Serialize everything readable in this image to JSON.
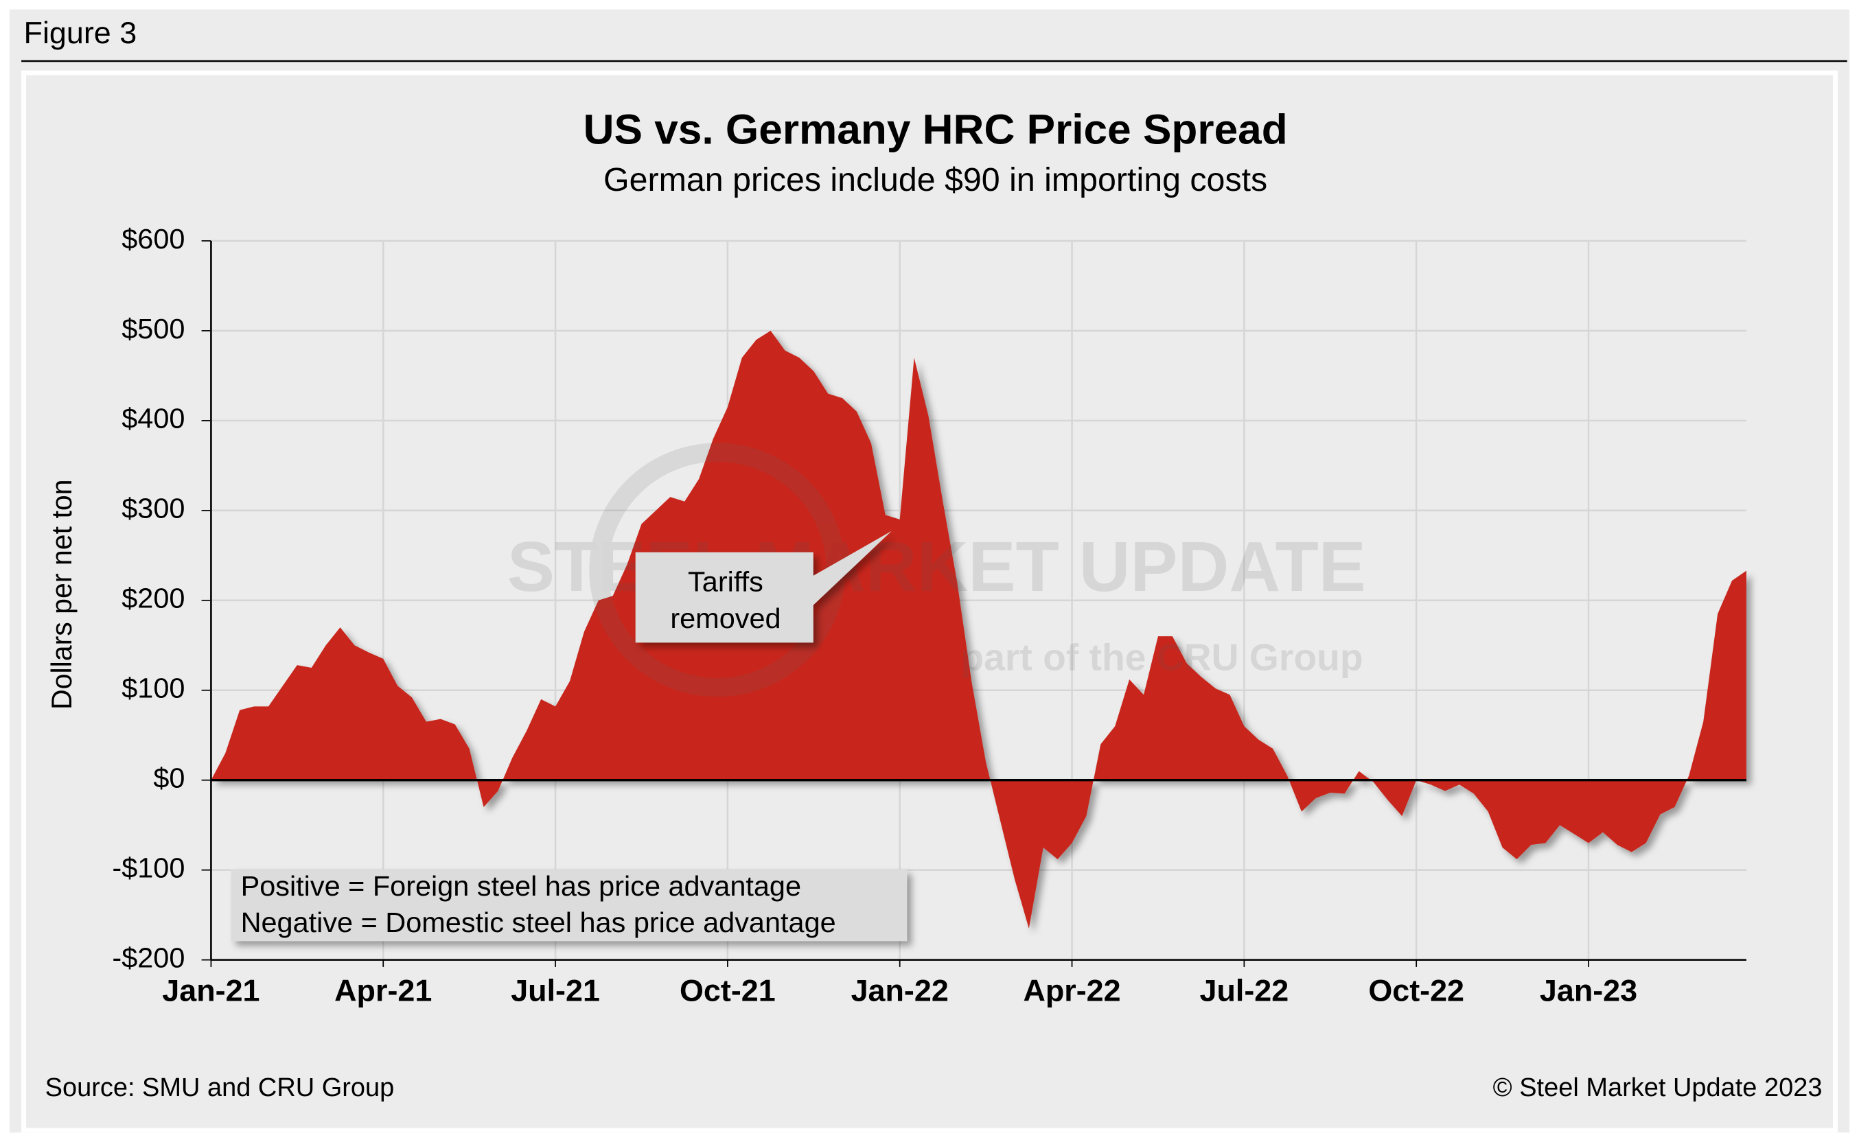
{
  "figure_label": "Figure 3",
  "chart_data": {
    "type": "area",
    "title": "US vs. Germany HRC Price Spread",
    "subtitle": "German prices include $90 in importing costs",
    "y_label": "Dollars per net ton",
    "color": "#c8281e",
    "grid": true,
    "categories": [
      "Jan-21",
      null,
      null,
      null,
      null,
      null,
      null,
      null,
      null,
      null,
      null,
      null,
      "Apr-21",
      null,
      null,
      null,
      null,
      null,
      null,
      null,
      null,
      null,
      null,
      null,
      "Jul-21",
      null,
      null,
      null,
      null,
      null,
      null,
      null,
      null,
      null,
      null,
      null,
      "Oct-21",
      null,
      null,
      null,
      null,
      null,
      null,
      null,
      null,
      null,
      null,
      null,
      "Jan-22",
      null,
      null,
      null,
      null,
      null,
      null,
      null,
      null,
      null,
      null,
      null,
      "Apr-22",
      null,
      null,
      null,
      null,
      null,
      null,
      null,
      null,
      null,
      null,
      null,
      "Jul-22",
      null,
      null,
      null,
      null,
      null,
      null,
      null,
      null,
      null,
      null,
      null,
      "Oct-22",
      null,
      null,
      null,
      null,
      null,
      null,
      null,
      null,
      null,
      null,
      null,
      "Jan-23",
      null,
      null,
      null,
      null,
      null,
      null,
      null,
      null,
      null,
      null,
      null
    ],
    "values": [
      0,
      30,
      78,
      82,
      82,
      105,
      128,
      125,
      150,
      170,
      150,
      142,
      135,
      105,
      92,
      65,
      68,
      62,
      35,
      -30,
      -12,
      25,
      55,
      90,
      82,
      110,
      165,
      200,
      205,
      240,
      285,
      300,
      315,
      310,
      335,
      380,
      415,
      470,
      490,
      500,
      478,
      470,
      455,
      430,
      425,
      410,
      375,
      295,
      290,
      470,
      405,
      310,
      220,
      110,
      20,
      -45,
      -110,
      -165,
      -75,
      -88,
      -70,
      -40,
      40,
      60,
      112,
      95,
      160,
      160,
      130,
      115,
      102,
      95,
      60,
      45,
      35,
      5,
      -35,
      -20,
      -14,
      -15,
      10,
      -2,
      -22,
      -40,
      0,
      -5,
      -12,
      -5,
      -15,
      -35,
      -75,
      -88,
      -72,
      -70,
      -50,
      -60,
      -70,
      -58,
      -72,
      -80,
      -70,
      -38,
      -30,
      5,
      65,
      185,
      222,
      233
    ],
    "ylim": [
      -200,
      600
    ],
    "yticks": [
      {
        "value": -200,
        "label": "-$200"
      },
      {
        "value": -100,
        "label": "-$100"
      },
      {
        "value": 0,
        "label": "$0"
      },
      {
        "value": 100,
        "label": "$100"
      },
      {
        "value": 200,
        "label": "$200"
      },
      {
        "value": 300,
        "label": "$300"
      },
      {
        "value": 400,
        "label": "$400"
      },
      {
        "value": 500,
        "label": "$500"
      },
      {
        "value": 600,
        "label": "$600"
      }
    ],
    "annotation": [
      "Tariffs",
      "removed"
    ],
    "note": [
      "Positive = Foreign steel has price advantage",
      "Negative = Domestic steel has price advantage"
    ],
    "watermark": [
      "STEEL MARKET UPDATE",
      "part of the CRU Group"
    ]
  },
  "source": "Source: SMU and CRU Group",
  "copyright": "© Steel Market Update 2023"
}
